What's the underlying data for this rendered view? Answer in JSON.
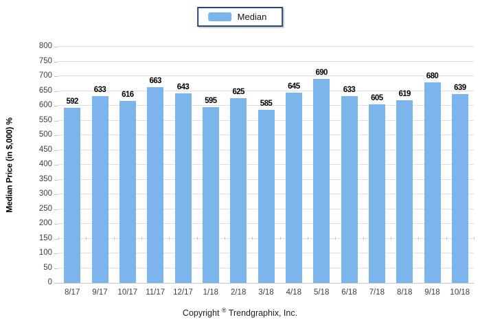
{
  "legend": {
    "label": "Median",
    "swatch_color": "#7CB5EC"
  },
  "footer": {
    "copyright_prefix": "Copyright",
    "copyright_symbol": "®",
    "copyright_suffix": "Trendgraphix, Inc."
  },
  "chart_data": {
    "type": "bar",
    "title": "",
    "xlabel": "",
    "ylabel": "Median Price (in $,000) %",
    "categories": [
      "8/17",
      "9/17",
      "10/17",
      "11/17",
      "12/17",
      "1/18",
      "2/18",
      "3/18",
      "4/18",
      "5/18",
      "6/18",
      "7/18",
      "8/18",
      "9/18",
      "10/18"
    ],
    "series": [
      {
        "name": "Median",
        "color": "#7CB5EC",
        "values": [
          592,
          633,
          616,
          663,
          643,
          595,
          625,
          585,
          645,
          690,
          633,
          605,
          619,
          680,
          639
        ]
      }
    ],
    "ylim": [
      0,
      800
    ],
    "ytick_step": 50,
    "grid": true,
    "legend_position": "top-center",
    "value_labels": true
  },
  "colors": {
    "bar": "#7CB5EC",
    "gridline": "#DFDFDF",
    "axis_line": "#C6C6C6",
    "legend_border": "#24477E",
    "axis_text": "#3d3d3d",
    "value_text": "#000000"
  }
}
